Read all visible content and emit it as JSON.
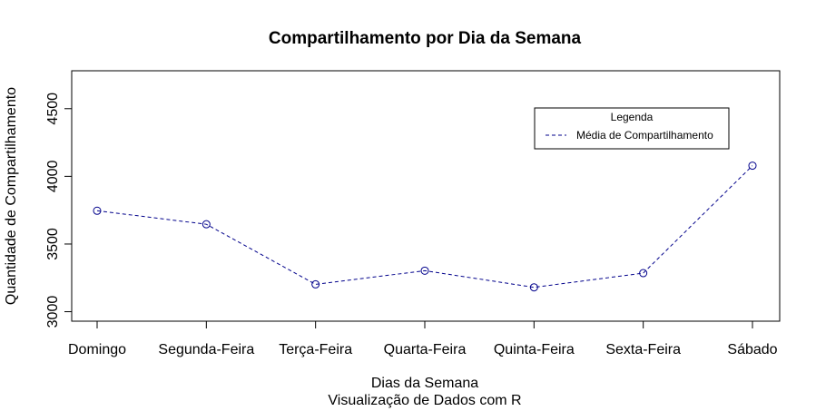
{
  "chart_data": {
    "type": "line",
    "title": "Compartilhamento por Dia da Semana",
    "xlabel": "Dias da Semana",
    "subtitle": "Visualização de Dados com R",
    "ylabel": "Quantidade de Compartilhamento",
    "categories": [
      "Domingo",
      "Segunda-Feira",
      "Terça-Feira",
      "Quarta-Feira",
      "Quinta-Feira",
      "Sexta-Feira",
      "Sábado"
    ],
    "series": [
      {
        "name": "Média de Compartilhamento",
        "values": [
          3746,
          3646,
          3202,
          3303,
          3180,
          3285,
          4079
        ]
      }
    ],
    "ylim": [
      2930,
      4780
    ],
    "yticks": [
      3000,
      3500,
      4000,
      4500
    ],
    "legend": {
      "title": "Legenda",
      "position": "top-right"
    },
    "series_color": "#00008B",
    "line_style": "dashed",
    "marker": "open-circle",
    "grid": false
  }
}
